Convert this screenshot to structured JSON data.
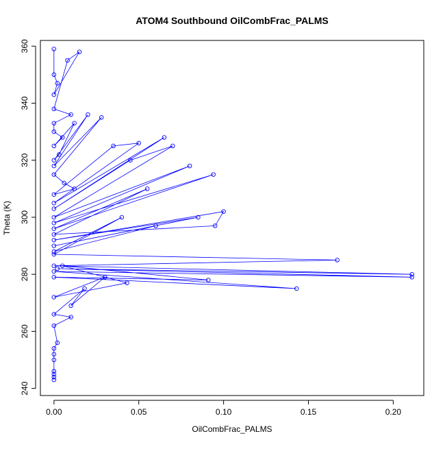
{
  "chart_data": {
    "type": "scatter",
    "title": "ATOM4 Southbound OilCombFrac_PALMS",
    "xlabel": "OilCombFrac_PALMS",
    "ylabel": "Theta (K)",
    "xlim": [
      -0.008,
      0.218
    ],
    "ylim": [
      237.5,
      362
    ],
    "x_ticks": [
      0.0,
      0.05,
      0.1,
      0.15,
      0.2
    ],
    "x_tick_labels": [
      "0.00",
      "0.05",
      "0.10",
      "0.15",
      "0.20"
    ],
    "y_ticks": [
      240,
      260,
      280,
      300,
      320,
      340,
      360
    ],
    "y_tick_labels": [
      "240",
      "260",
      "280",
      "300",
      "320",
      "340",
      "360"
    ],
    "grid": false,
    "legend": "none",
    "series_color": "#0000ff",
    "series": [
      {
        "style": "line+points",
        "x": [
          0.0,
          0.0,
          0.002,
          0.0,
          0.015,
          0.008,
          0.0,
          0.01,
          0.0,
          0.0,
          0.005,
          0.0,
          0.012,
          0.003,
          0.0,
          0.02,
          0.0,
          0.028,
          0.0,
          0.006,
          0.012,
          0.0,
          0.035,
          0.05,
          0.0,
          0.065,
          0.0,
          0.045,
          0.07,
          0.0,
          0.08,
          0.0,
          0.094,
          0.0,
          0.055,
          0.0,
          0.095,
          0.1,
          0.0,
          0.085,
          0.0,
          0.06,
          0.0,
          0.04,
          0.0,
          0.167,
          0.0,
          0.211,
          0.002,
          0.211,
          0.0,
          0.143,
          0.0,
          0.091,
          0.005,
          0.043,
          0.0,
          0.03,
          0.01,
          0.018,
          0.0,
          0.01,
          0.0,
          0.002,
          0.0,
          0.0,
          0.0,
          0.0,
          0.0,
          0.0,
          0.0
        ],
        "y": [
          359,
          350,
          347,
          343,
          358,
          355,
          338,
          336,
          333,
          330,
          328,
          325,
          333,
          322,
          320,
          336,
          318,
          335,
          315,
          312,
          310,
          308,
          325,
          326,
          305,
          328,
          303,
          320,
          325,
          300,
          318,
          298,
          315,
          296,
          310,
          294,
          297,
          302,
          292,
          300,
          290,
          297,
          288,
          300,
          287,
          285,
          283,
          280,
          282,
          279,
          281,
          275,
          279,
          278,
          283,
          277,
          272,
          279,
          269,
          275,
          266,
          265,
          262,
          256,
          254,
          250,
          246,
          244,
          243,
          252,
          245
        ]
      }
    ]
  }
}
